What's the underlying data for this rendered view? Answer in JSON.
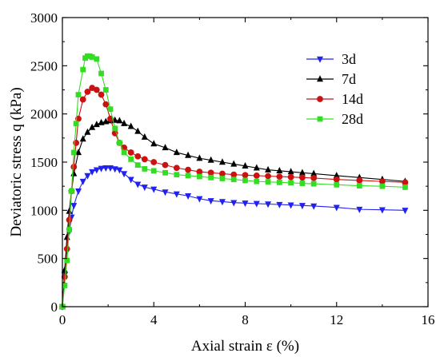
{
  "chart_data": {
    "type": "line",
    "xlabel": "Axial strain ε (%)",
    "ylabel": "Deviatoric stress q (kPa)",
    "xlim": [
      0,
      16
    ],
    "ylim": [
      0,
      3000
    ],
    "xticks": [
      0,
      4,
      8,
      12,
      16
    ],
    "yticks": [
      0,
      500,
      1000,
      1500,
      2000,
      2500,
      3000
    ],
    "grid": false,
    "legend_position": "top-right",
    "series": [
      {
        "name": "3d",
        "color": "#2222ee",
        "marker": "triangle-down",
        "x": [
          0.0,
          0.1,
          0.2,
          0.3,
          0.4,
          0.5,
          0.7,
          0.9,
          1.1,
          1.3,
          1.5,
          1.7,
          1.9,
          2.1,
          2.3,
          2.5,
          2.7,
          3.0,
          3.3,
          3.6,
          4.0,
          4.5,
          5.0,
          5.5,
          6.0,
          6.5,
          7.0,
          7.5,
          8.0,
          8.5,
          9.0,
          9.5,
          10.0,
          10.5,
          11.0,
          12.0,
          13.0,
          14.0,
          15.0
        ],
        "values": [
          0,
          330,
          580,
          780,
          930,
          1050,
          1200,
          1300,
          1360,
          1400,
          1420,
          1435,
          1440,
          1440,
          1430,
          1420,
          1380,
          1320,
          1270,
          1240,
          1220,
          1190,
          1170,
          1150,
          1120,
          1100,
          1090,
          1080,
          1075,
          1070,
          1065,
          1060,
          1055,
          1050,
          1045,
          1030,
          1010,
          1005,
          1000
        ]
      },
      {
        "name": "7d",
        "color": "#000000",
        "marker": "triangle-up",
        "x": [
          0.0,
          0.1,
          0.2,
          0.3,
          0.4,
          0.5,
          0.7,
          0.9,
          1.1,
          1.3,
          1.5,
          1.7,
          1.9,
          2.1,
          2.3,
          2.5,
          2.7,
          3.0,
          3.3,
          3.6,
          4.0,
          4.5,
          5.0,
          5.5,
          6.0,
          6.5,
          7.0,
          7.5,
          8.0,
          8.5,
          9.0,
          9.5,
          10.0,
          10.5,
          11.0,
          12.0,
          13.0,
          14.0,
          15.0
        ],
        "values": [
          0,
          380,
          720,
          990,
          1200,
          1380,
          1600,
          1740,
          1810,
          1860,
          1890,
          1910,
          1920,
          1930,
          1935,
          1930,
          1900,
          1870,
          1820,
          1760,
          1690,
          1650,
          1600,
          1570,
          1540,
          1520,
          1500,
          1480,
          1460,
          1440,
          1420,
          1410,
          1400,
          1390,
          1380,
          1360,
          1340,
          1320,
          1300
        ]
      },
      {
        "name": "14d",
        "color": "#cc1111",
        "marker": "circle",
        "x": [
          0.0,
          0.1,
          0.2,
          0.3,
          0.4,
          0.5,
          0.6,
          0.7,
          0.9,
          1.1,
          1.3,
          1.5,
          1.7,
          1.9,
          2.1,
          2.3,
          2.5,
          2.7,
          3.0,
          3.3,
          3.6,
          4.0,
          4.5,
          5.0,
          5.5,
          6.0,
          6.5,
          7.0,
          7.5,
          8.0,
          8.5,
          9.0,
          9.5,
          10.0,
          10.5,
          11.0,
          12.0,
          13.0,
          14.0,
          15.0
        ],
        "values": [
          0,
          310,
          600,
          900,
          1200,
          1450,
          1700,
          1950,
          2150,
          2230,
          2270,
          2250,
          2200,
          2100,
          1950,
          1800,
          1700,
          1650,
          1600,
          1560,
          1530,
          1500,
          1470,
          1440,
          1420,
          1400,
          1390,
          1380,
          1370,
          1365,
          1360,
          1355,
          1350,
          1345,
          1340,
          1335,
          1320,
          1310,
          1300,
          1290
        ]
      },
      {
        "name": "28d",
        "color": "#33dd22",
        "marker": "square",
        "x": [
          0.0,
          0.1,
          0.2,
          0.3,
          0.4,
          0.5,
          0.6,
          0.7,
          0.9,
          1.0,
          1.1,
          1.2,
          1.3,
          1.5,
          1.7,
          1.9,
          2.1,
          2.3,
          2.5,
          2.7,
          3.0,
          3.3,
          3.6,
          4.0,
          4.5,
          5.0,
          5.5,
          6.0,
          6.5,
          7.0,
          7.5,
          8.0,
          8.5,
          9.0,
          9.5,
          10.0,
          10.5,
          11.0,
          12.0,
          13.0,
          14.0,
          15.0
        ],
        "values": [
          0,
          220,
          480,
          800,
          1200,
          1600,
          1900,
          2200,
          2460,
          2580,
          2600,
          2600,
          2590,
          2570,
          2420,
          2250,
          2050,
          1850,
          1700,
          1600,
          1530,
          1470,
          1430,
          1410,
          1390,
          1370,
          1360,
          1350,
          1340,
          1330,
          1320,
          1310,
          1300,
          1295,
          1290,
          1285,
          1280,
          1275,
          1265,
          1255,
          1250,
          1240
        ]
      }
    ]
  }
}
